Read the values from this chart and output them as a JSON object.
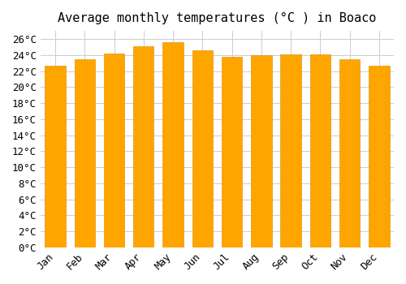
{
  "title": "Average monthly temperatures (°C ) in Boaco",
  "months": [
    "Jan",
    "Feb",
    "Mar",
    "Apr",
    "May",
    "Jun",
    "Jul",
    "Aug",
    "Sep",
    "Oct",
    "Nov",
    "Dec"
  ],
  "values": [
    22.7,
    23.5,
    24.2,
    25.1,
    25.6,
    24.6,
    23.8,
    24.0,
    24.1,
    24.1,
    23.5,
    22.7
  ],
  "bar_color": "#FFA500",
  "bar_edge_color": "#E8960A",
  "ylim": [
    0,
    27
  ],
  "ytick_step": 2,
  "background_color": "#ffffff",
  "grid_color": "#cccccc",
  "title_fontsize": 11,
  "tick_fontsize": 9,
  "font_family": "monospace"
}
